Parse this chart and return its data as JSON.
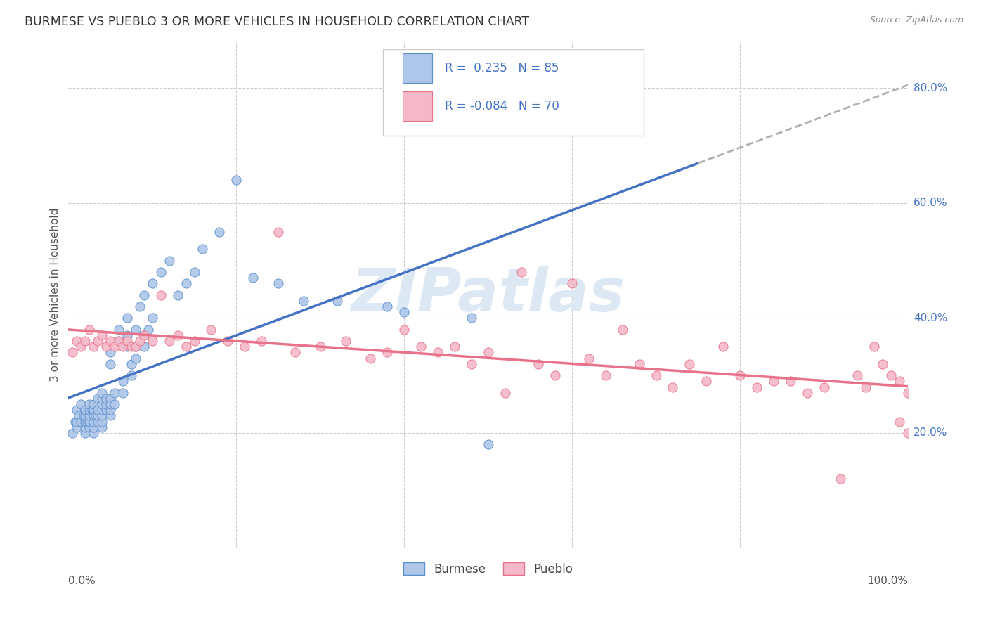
{
  "title": "BURMESE VS PUEBLO 3 OR MORE VEHICLES IN HOUSEHOLD CORRELATION CHART",
  "source": "Source: ZipAtlas.com",
  "ylabel": "3 or more Vehicles in Household",
  "xlim": [
    0.0,
    1.0
  ],
  "ylim": [
    0.0,
    0.88
  ],
  "yticks": [
    0.2,
    0.4,
    0.6,
    0.8
  ],
  "ytick_labels": [
    "20.0%",
    "40.0%",
    "60.0%",
    "80.0%"
  ],
  "burmese_R": 0.235,
  "burmese_N": 85,
  "pueblo_R": -0.084,
  "pueblo_N": 70,
  "burmese_color": "#aec6e8",
  "pueblo_color": "#f4b8c8",
  "burmese_edge_color": "#5b8fcc",
  "pueblo_edge_color": "#e8728a",
  "burmese_line_color": "#4472c4",
  "pueblo_line_color": "#e8728a",
  "trend_line_color": "#b0b0b0",
  "background_color": "#ffffff",
  "grid_color": "#cccccc",
  "title_color": "#333333",
  "right_label_color": "#4472c4",
  "watermark_color": "#dce8f4",
  "burmese_x": [
    0.005,
    0.008,
    0.01,
    0.01,
    0.01,
    0.012,
    0.015,
    0.015,
    0.018,
    0.02,
    0.02,
    0.02,
    0.02,
    0.02,
    0.022,
    0.025,
    0.025,
    0.025,
    0.025,
    0.025,
    0.028,
    0.03,
    0.03,
    0.03,
    0.03,
    0.03,
    0.03,
    0.032,
    0.035,
    0.035,
    0.035,
    0.035,
    0.04,
    0.04,
    0.04,
    0.04,
    0.04,
    0.04,
    0.04,
    0.045,
    0.045,
    0.045,
    0.05,
    0.05,
    0.05,
    0.05,
    0.05,
    0.05,
    0.055,
    0.055,
    0.06,
    0.06,
    0.065,
    0.065,
    0.07,
    0.07,
    0.07,
    0.075,
    0.075,
    0.08,
    0.08,
    0.08,
    0.085,
    0.09,
    0.09,
    0.09,
    0.095,
    0.1,
    0.1,
    0.11,
    0.12,
    0.13,
    0.14,
    0.15,
    0.16,
    0.18,
    0.2,
    0.22,
    0.25,
    0.28,
    0.32,
    0.38,
    0.4,
    0.48,
    0.5
  ],
  "burmese_y": [
    0.2,
    0.22,
    0.21,
    0.22,
    0.24,
    0.23,
    0.22,
    0.25,
    0.23,
    0.2,
    0.21,
    0.22,
    0.23,
    0.24,
    0.22,
    0.21,
    0.22,
    0.23,
    0.24,
    0.25,
    0.24,
    0.2,
    0.21,
    0.22,
    0.23,
    0.24,
    0.25,
    0.23,
    0.22,
    0.23,
    0.24,
    0.26,
    0.21,
    0.22,
    0.23,
    0.24,
    0.25,
    0.26,
    0.27,
    0.24,
    0.25,
    0.26,
    0.23,
    0.24,
    0.25,
    0.26,
    0.32,
    0.34,
    0.25,
    0.27,
    0.36,
    0.38,
    0.27,
    0.29,
    0.35,
    0.37,
    0.4,
    0.3,
    0.32,
    0.33,
    0.35,
    0.38,
    0.42,
    0.35,
    0.37,
    0.44,
    0.38,
    0.4,
    0.46,
    0.48,
    0.5,
    0.44,
    0.46,
    0.48,
    0.52,
    0.55,
    0.64,
    0.47,
    0.46,
    0.43,
    0.43,
    0.42,
    0.41,
    0.4,
    0.18
  ],
  "pueblo_x": [
    0.005,
    0.01,
    0.015,
    0.02,
    0.025,
    0.03,
    0.035,
    0.04,
    0.045,
    0.05,
    0.055,
    0.06,
    0.065,
    0.07,
    0.075,
    0.08,
    0.085,
    0.09,
    0.1,
    0.11,
    0.12,
    0.13,
    0.14,
    0.15,
    0.17,
    0.19,
    0.21,
    0.23,
    0.25,
    0.27,
    0.3,
    0.33,
    0.36,
    0.38,
    0.4,
    0.42,
    0.44,
    0.46,
    0.48,
    0.5,
    0.52,
    0.54,
    0.56,
    0.58,
    0.6,
    0.62,
    0.64,
    0.66,
    0.68,
    0.7,
    0.72,
    0.74,
    0.76,
    0.78,
    0.8,
    0.82,
    0.84,
    0.86,
    0.88,
    0.9,
    0.92,
    0.94,
    0.95,
    0.96,
    0.97,
    0.98,
    0.99,
    0.99,
    1.0,
    1.0
  ],
  "pueblo_y": [
    0.34,
    0.36,
    0.35,
    0.36,
    0.38,
    0.35,
    0.36,
    0.37,
    0.35,
    0.36,
    0.35,
    0.36,
    0.35,
    0.36,
    0.35,
    0.35,
    0.36,
    0.37,
    0.36,
    0.44,
    0.36,
    0.37,
    0.35,
    0.36,
    0.38,
    0.36,
    0.35,
    0.36,
    0.55,
    0.34,
    0.35,
    0.36,
    0.33,
    0.34,
    0.38,
    0.35,
    0.34,
    0.35,
    0.32,
    0.34,
    0.27,
    0.48,
    0.32,
    0.3,
    0.46,
    0.33,
    0.3,
    0.38,
    0.32,
    0.3,
    0.28,
    0.32,
    0.29,
    0.35,
    0.3,
    0.28,
    0.29,
    0.29,
    0.27,
    0.28,
    0.12,
    0.3,
    0.28,
    0.35,
    0.32,
    0.3,
    0.29,
    0.22,
    0.27,
    0.2
  ]
}
